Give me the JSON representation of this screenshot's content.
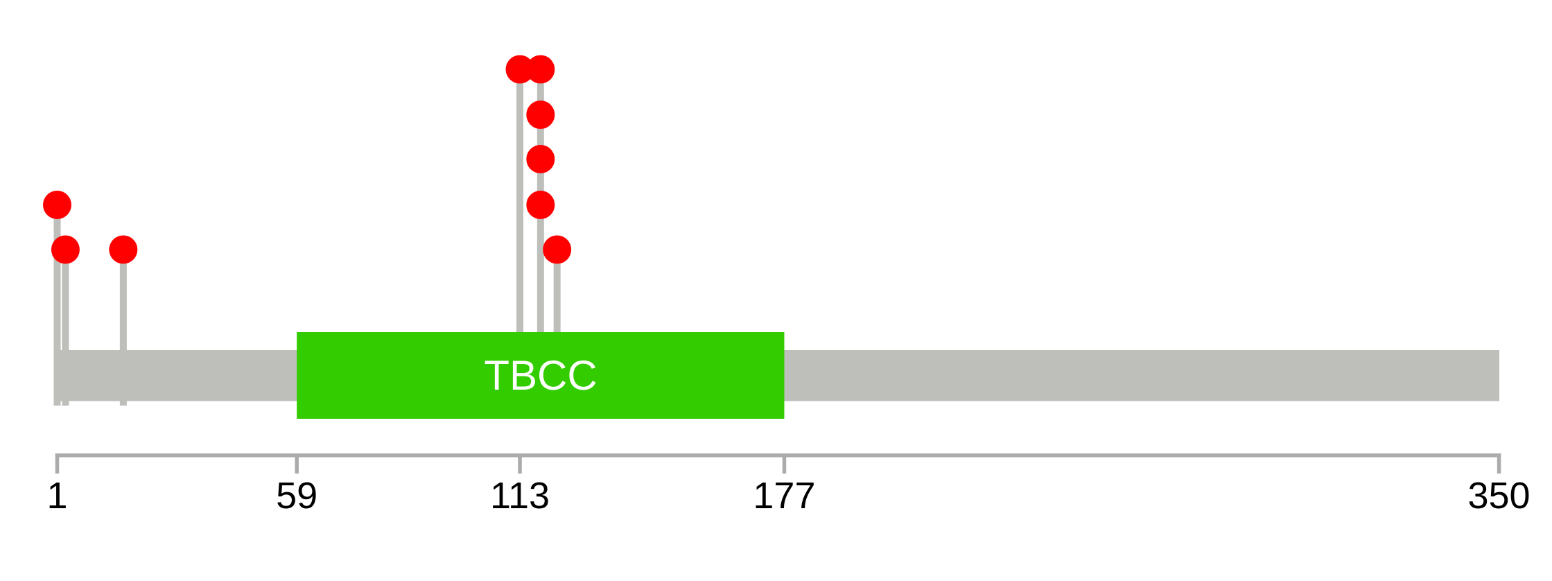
{
  "figure": {
    "background": "#ffffff",
    "description": "Protein mutation lollipop plot with TBCC domain"
  },
  "chart_data": {
    "type": "lollipop",
    "title": "",
    "xlabel": "",
    "ylabel": "",
    "grid": false,
    "legend": false,
    "protein": {
      "start": 1,
      "end": 350
    },
    "axis": {
      "min": 1,
      "max": 350,
      "tick_values": [
        1,
        59,
        113,
        177,
        350
      ],
      "tick_labels": [
        "1",
        "59",
        "113",
        "177",
        "350"
      ]
    },
    "domains": [
      {
        "label": "TBCC",
        "start": 59,
        "end": 177,
        "color": "#33CC00",
        "text_color": "#FFFFFF"
      }
    ],
    "mutations": [
      {
        "residue": 1,
        "stack_level": 2
      },
      {
        "residue": 3,
        "stack_level": 1
      },
      {
        "residue": 17,
        "stack_level": 1
      },
      {
        "residue": 113,
        "stack_level": 5
      },
      {
        "residue": 118,
        "stack_level": 5
      },
      {
        "residue": 118,
        "stack_level": 4
      },
      {
        "residue": 118,
        "stack_level": 3
      },
      {
        "residue": 118,
        "stack_level": 2
      },
      {
        "residue": 122,
        "stack_level": 1
      }
    ],
    "colors": {
      "marker": "#FF0000",
      "stem": "#BEBEBA",
      "backbone": "#BEBEBA",
      "axis": "#ABABAB",
      "tick_text": "#000000"
    }
  }
}
